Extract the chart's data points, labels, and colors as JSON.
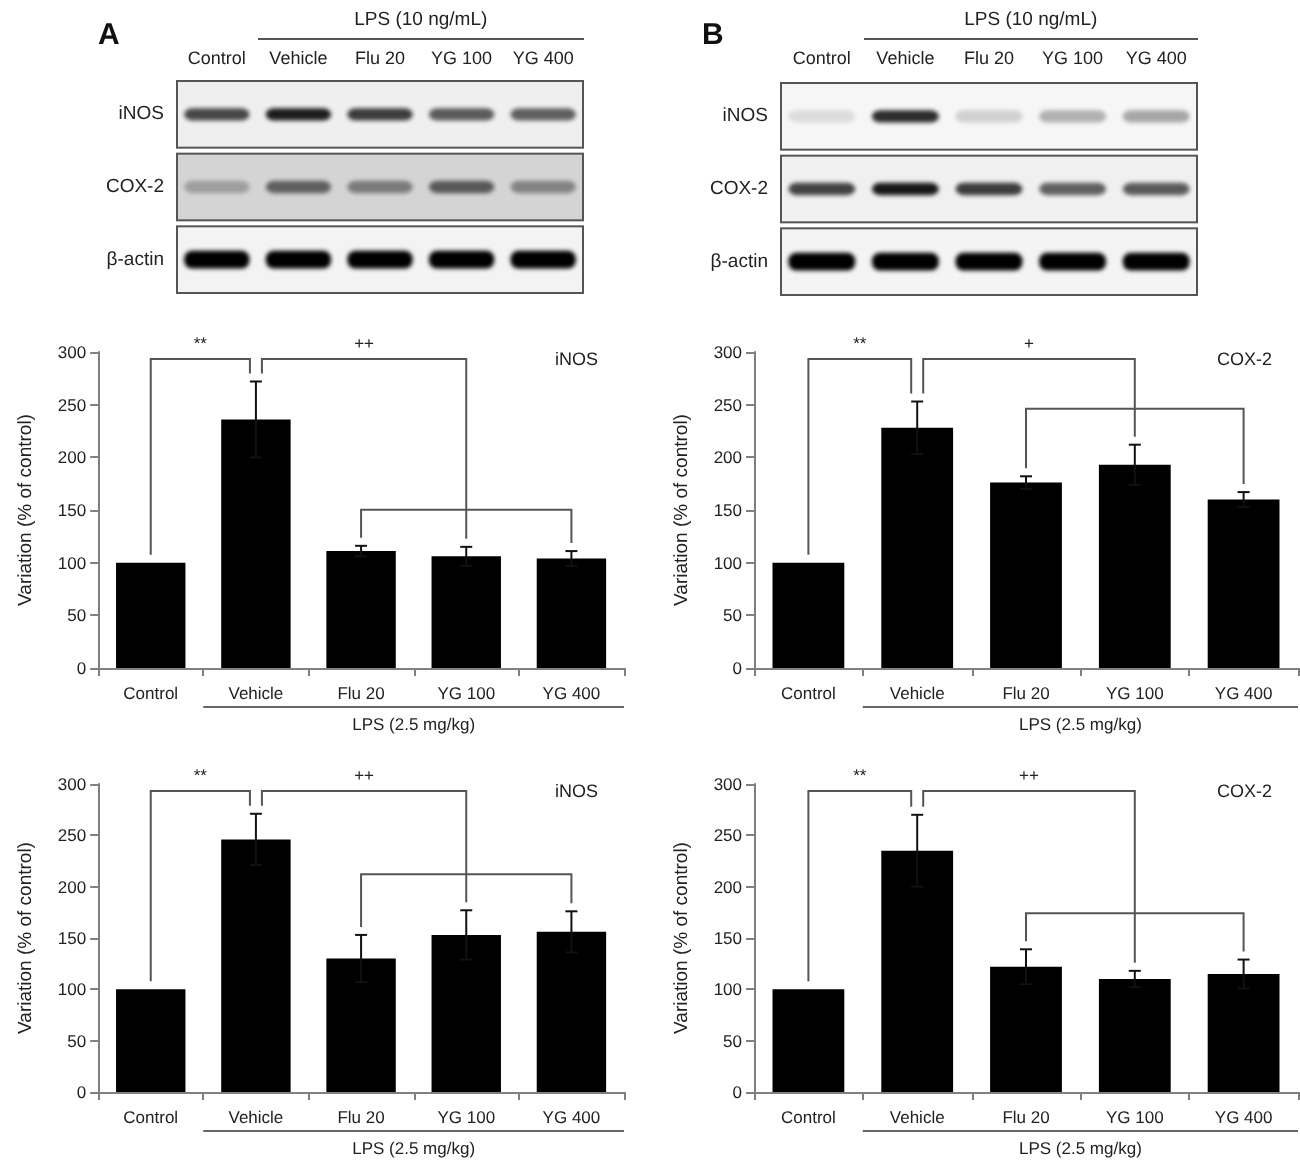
{
  "chart_data": [
    {
      "type": "other",
      "title": "A",
      "xlabel": "LPS (10 ng/mL)",
      "categories": [
        "Control",
        "Vehicle",
        "Flu 20",
        "YG 100",
        "YG 400"
      ],
      "y_categories": [
        "iNOS",
        "COX-2",
        "β-actin"
      ]
    },
    {
      "type": "other",
      "title": "B",
      "xlabel": "LPS (10 ng/mL)",
      "categories": [
        "Control",
        "Vehicle",
        "Flu 20",
        "YG 100",
        "YG 400"
      ],
      "y_categories": [
        "iNOS",
        "COX-2",
        "β-actin"
      ]
    },
    {
      "type": "bar",
      "title": "iNOS",
      "categories": [
        "Control",
        "Vehicle",
        "Flu 20",
        "YG 100",
        "YG 400"
      ],
      "values": [
        100,
        236,
        111,
        106,
        104
      ],
      "errors": [
        null,
        36,
        5,
        9,
        7
      ],
      "color": "#000000",
      "xlabel": "LPS (2.5 mg/kg)",
      "ylabel": "Variation (% of control)",
      "ylim": [
        0,
        300
      ],
      "yticks": [
        0,
        50,
        100,
        150,
        200,
        250,
        300
      ],
      "annotations": [
        "**",
        "++"
      ]
    },
    {
      "type": "bar",
      "title": "COX-2",
      "categories": [
        "Control",
        "Vehicle",
        "Flu 20",
        "YG 100",
        "YG 400"
      ],
      "values": [
        100,
        228,
        176,
        193,
        160
      ],
      "errors": [
        null,
        25,
        6,
        19,
        7
      ],
      "color": "#000000",
      "xlabel": "LPS (2.5 mg/kg)",
      "ylabel": "Variation (% of control)",
      "ylim": [
        0,
        300
      ],
      "yticks": [
        0,
        50,
        100,
        150,
        200,
        250,
        300
      ],
      "annotations": [
        "**",
        "+"
      ]
    },
    {
      "type": "bar",
      "title": "iNOS",
      "categories": [
        "Control",
        "Vehicle",
        "Flu 20",
        "YG 100",
        "YG 400"
      ],
      "values": [
        100,
        246,
        130,
        153,
        156
      ],
      "errors": [
        null,
        25,
        23,
        24,
        20
      ],
      "color": "#000000",
      "xlabel": "LPS (2.5 mg/kg)",
      "ylabel": "Variation (% of control)",
      "ylim": [
        0,
        300
      ],
      "yticks": [
        0,
        50,
        100,
        150,
        200,
        250,
        300
      ],
      "annotations": [
        "**",
        "++"
      ]
    },
    {
      "type": "bar",
      "title": "COX-2",
      "categories": [
        "Control",
        "Vehicle",
        "Flu 20",
        "YG 100",
        "YG 400"
      ],
      "values": [
        100,
        235,
        122,
        110,
        115
      ],
      "errors": [
        null,
        35,
        17,
        8,
        14
      ],
      "color": "#000000",
      "xlabel": "LPS (2.5 mg/kg)",
      "ylabel": "Variation (% of control)",
      "ylim": [
        0,
        300
      ],
      "yticks": [
        0,
        50,
        100,
        150,
        200,
        250,
        300
      ],
      "annotations": [
        "**",
        "++"
      ]
    }
  ]
}
